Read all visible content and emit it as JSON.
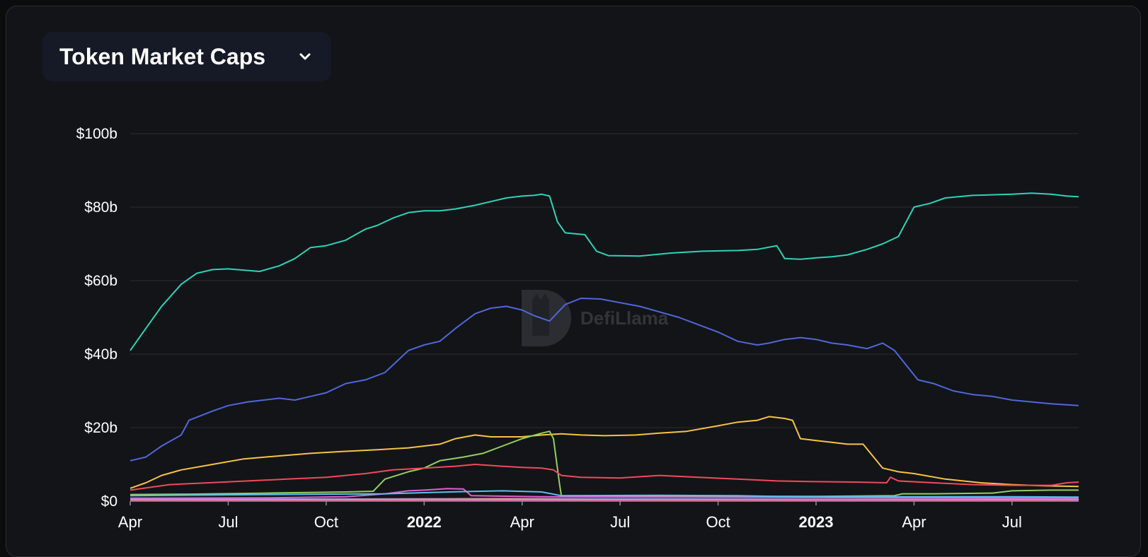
{
  "header": {
    "selector_label": "Token Market Caps"
  },
  "watermark": {
    "text": "DefiLlama"
  },
  "chart_data": {
    "type": "line",
    "title": "",
    "xlabel": "",
    "ylabel": "",
    "ylim": [
      0,
      100
    ],
    "y_unit": "b",
    "y_ticks": [
      0,
      20,
      40,
      60,
      80,
      100
    ],
    "y_tick_labels": [
      "$0",
      "$20b",
      "$40b",
      "$60b",
      "$80b",
      "$100b"
    ],
    "x_ticks": [
      {
        "x": 2021.25,
        "label": "Apr",
        "bold": false
      },
      {
        "x": 2021.5,
        "label": "Jul",
        "bold": false
      },
      {
        "x": 2021.75,
        "label": "Oct",
        "bold": false
      },
      {
        "x": 2022.0,
        "label": "2022",
        "bold": true
      },
      {
        "x": 2022.25,
        "label": "Apr",
        "bold": false
      },
      {
        "x": 2022.5,
        "label": "Jul",
        "bold": false
      },
      {
        "x": 2022.75,
        "label": "Oct",
        "bold": false
      },
      {
        "x": 2023.0,
        "label": "2023",
        "bold": true
      },
      {
        "x": 2023.25,
        "label": "Apr",
        "bold": false
      },
      {
        "x": 2023.5,
        "label": "Jul",
        "bold": false
      }
    ],
    "xlim": [
      2021.25,
      2023.67
    ],
    "grid": true,
    "legend": "none",
    "series": [
      {
        "color": "#2ed3b7",
        "points": [
          [
            2021.25,
            41
          ],
          [
            2021.29,
            47
          ],
          [
            2021.33,
            53
          ],
          [
            2021.38,
            59
          ],
          [
            2021.42,
            62
          ],
          [
            2021.46,
            63
          ],
          [
            2021.5,
            63.2
          ],
          [
            2021.58,
            62.5
          ],
          [
            2021.63,
            64
          ],
          [
            2021.67,
            66
          ],
          [
            2021.71,
            69
          ],
          [
            2021.75,
            69.5
          ],
          [
            2021.8,
            71
          ],
          [
            2021.85,
            74
          ],
          [
            2021.88,
            75
          ],
          [
            2021.92,
            77
          ],
          [
            2021.96,
            78.5
          ],
          [
            2022.0,
            79
          ],
          [
            2022.04,
            79
          ],
          [
            2022.08,
            79.5
          ],
          [
            2022.13,
            80.5
          ],
          [
            2022.17,
            81.5
          ],
          [
            2022.21,
            82.5
          ],
          [
            2022.25,
            83
          ],
          [
            2022.28,
            83.2
          ],
          [
            2022.3,
            83.5
          ],
          [
            2022.32,
            83
          ],
          [
            2022.34,
            76
          ],
          [
            2022.36,
            73
          ],
          [
            2022.41,
            72.5
          ],
          [
            2022.44,
            68
          ],
          [
            2022.47,
            66.8
          ],
          [
            2022.55,
            66.7
          ],
          [
            2022.63,
            67.5
          ],
          [
            2022.71,
            68
          ],
          [
            2022.8,
            68.2
          ],
          [
            2022.85,
            68.5
          ],
          [
            2022.9,
            69.5
          ],
          [
            2022.92,
            66
          ],
          [
            2022.96,
            65.8
          ],
          [
            2023.0,
            66.2
          ],
          [
            2023.04,
            66.5
          ],
          [
            2023.08,
            67
          ],
          [
            2023.13,
            68.5
          ],
          [
            2023.17,
            70
          ],
          [
            2023.21,
            72
          ],
          [
            2023.25,
            80
          ],
          [
            2023.29,
            81
          ],
          [
            2023.33,
            82.5
          ],
          [
            2023.4,
            83.2
          ],
          [
            2023.5,
            83.5
          ],
          [
            2023.55,
            83.8
          ],
          [
            2023.6,
            83.5
          ],
          [
            2023.64,
            83
          ],
          [
            2023.67,
            82.8
          ]
        ]
      },
      {
        "color": "#4f68d8",
        "points": [
          [
            2021.25,
            11
          ],
          [
            2021.29,
            12
          ],
          [
            2021.33,
            15
          ],
          [
            2021.38,
            18
          ],
          [
            2021.4,
            22
          ],
          [
            2021.46,
            24.5
          ],
          [
            2021.5,
            26
          ],
          [
            2021.55,
            27
          ],
          [
            2021.63,
            28
          ],
          [
            2021.67,
            27.5
          ],
          [
            2021.71,
            28.5
          ],
          [
            2021.75,
            29.5
          ],
          [
            2021.8,
            32
          ],
          [
            2021.85,
            33
          ],
          [
            2021.9,
            35
          ],
          [
            2021.96,
            41
          ],
          [
            2022.0,
            42.5
          ],
          [
            2022.04,
            43.5
          ],
          [
            2022.08,
            47
          ],
          [
            2022.13,
            51
          ],
          [
            2022.17,
            52.5
          ],
          [
            2022.21,
            53
          ],
          [
            2022.25,
            52
          ],
          [
            2022.28,
            50.5
          ],
          [
            2022.32,
            49
          ],
          [
            2022.36,
            53.5
          ],
          [
            2022.4,
            55.2
          ],
          [
            2022.45,
            55
          ],
          [
            2022.5,
            54
          ],
          [
            2022.55,
            53
          ],
          [
            2022.6,
            51.5
          ],
          [
            2022.65,
            50
          ],
          [
            2022.7,
            48
          ],
          [
            2022.75,
            46
          ],
          [
            2022.8,
            43.5
          ],
          [
            2022.85,
            42.5
          ],
          [
            2022.88,
            43
          ],
          [
            2022.92,
            44
          ],
          [
            2022.96,
            44.5
          ],
          [
            2023.0,
            44
          ],
          [
            2023.04,
            43
          ],
          [
            2023.08,
            42.5
          ],
          [
            2023.13,
            41.5
          ],
          [
            2023.17,
            43
          ],
          [
            2023.2,
            41
          ],
          [
            2023.23,
            37
          ],
          [
            2023.26,
            33
          ],
          [
            2023.3,
            32
          ],
          [
            2023.35,
            30
          ],
          [
            2023.4,
            29
          ],
          [
            2023.45,
            28.5
          ],
          [
            2023.5,
            27.5
          ],
          [
            2023.55,
            27
          ],
          [
            2023.6,
            26.5
          ],
          [
            2023.67,
            26
          ]
        ]
      },
      {
        "color": "#f6c344",
        "points": [
          [
            2021.25,
            3.5
          ],
          [
            2021.29,
            5
          ],
          [
            2021.33,
            7
          ],
          [
            2021.38,
            8.5
          ],
          [
            2021.46,
            10
          ],
          [
            2021.54,
            11.5
          ],
          [
            2021.63,
            12.3
          ],
          [
            2021.71,
            13
          ],
          [
            2021.79,
            13.5
          ],
          [
            2021.88,
            14
          ],
          [
            2021.96,
            14.5
          ],
          [
            2022.0,
            15
          ],
          [
            2022.04,
            15.5
          ],
          [
            2022.08,
            17
          ],
          [
            2022.13,
            18
          ],
          [
            2022.17,
            17.5
          ],
          [
            2022.25,
            17.5
          ],
          [
            2022.3,
            18
          ],
          [
            2022.35,
            18.3
          ],
          [
            2022.4,
            18
          ],
          [
            2022.46,
            17.8
          ],
          [
            2022.54,
            18
          ],
          [
            2022.6,
            18.5
          ],
          [
            2022.67,
            19
          ],
          [
            2022.75,
            20.5
          ],
          [
            2022.8,
            21.5
          ],
          [
            2022.85,
            22
          ],
          [
            2022.88,
            23
          ],
          [
            2022.92,
            22.5
          ],
          [
            2022.94,
            22
          ],
          [
            2022.96,
            17
          ],
          [
            2023.0,
            16.5
          ],
          [
            2023.04,
            16
          ],
          [
            2023.08,
            15.5
          ],
          [
            2023.12,
            15.5
          ],
          [
            2023.17,
            9
          ],
          [
            2023.21,
            8
          ],
          [
            2023.25,
            7.5
          ],
          [
            2023.33,
            6
          ],
          [
            2023.42,
            5
          ],
          [
            2023.5,
            4.5
          ],
          [
            2023.58,
            4.2
          ],
          [
            2023.67,
            4
          ]
        ]
      },
      {
        "color": "#90d060",
        "points": [
          [
            2021.25,
            1.8
          ],
          [
            2021.4,
            1.9
          ],
          [
            2021.6,
            2.2
          ],
          [
            2021.8,
            2.5
          ],
          [
            2021.87,
            2.7
          ],
          [
            2021.9,
            6
          ],
          [
            2021.96,
            8
          ],
          [
            2022.0,
            9
          ],
          [
            2022.04,
            11
          ],
          [
            2022.1,
            12
          ],
          [
            2022.15,
            13
          ],
          [
            2022.2,
            15
          ],
          [
            2022.25,
            17
          ],
          [
            2022.3,
            18.5
          ],
          [
            2022.32,
            19
          ],
          [
            2022.33,
            17
          ],
          [
            2022.345,
            5
          ],
          [
            2022.35,
            1.5
          ],
          [
            2022.5,
            1.4
          ],
          [
            2022.8,
            1.3
          ],
          [
            2023.0,
            1.3
          ],
          [
            2023.2,
            1.5
          ],
          [
            2023.22,
            2
          ],
          [
            2023.3,
            2
          ],
          [
            2023.45,
            2.2
          ],
          [
            2023.5,
            2.8
          ],
          [
            2023.6,
            3
          ],
          [
            2023.67,
            3
          ]
        ]
      },
      {
        "color": "#f04a5a",
        "points": [
          [
            2021.25,
            3
          ],
          [
            2021.35,
            4.5
          ],
          [
            2021.45,
            5
          ],
          [
            2021.55,
            5.5
          ],
          [
            2021.65,
            6
          ],
          [
            2021.75,
            6.5
          ],
          [
            2021.85,
            7.5
          ],
          [
            2021.92,
            8.5
          ],
          [
            2022.0,
            9
          ],
          [
            2022.08,
            9.5
          ],
          [
            2022.13,
            10
          ],
          [
            2022.2,
            9.5
          ],
          [
            2022.25,
            9.2
          ],
          [
            2022.3,
            9
          ],
          [
            2022.33,
            8.5
          ],
          [
            2022.35,
            7
          ],
          [
            2022.4,
            6.5
          ],
          [
            2022.5,
            6.3
          ],
          [
            2022.6,
            7
          ],
          [
            2022.7,
            6.5
          ],
          [
            2022.8,
            6
          ],
          [
            2022.9,
            5.5
          ],
          [
            2023.0,
            5.3
          ],
          [
            2023.1,
            5.2
          ],
          [
            2023.18,
            5
          ],
          [
            2023.19,
            6.5
          ],
          [
            2023.21,
            5.5
          ],
          [
            2023.3,
            5
          ],
          [
            2023.4,
            4.5
          ],
          [
            2023.5,
            4.3
          ],
          [
            2023.6,
            4.3
          ],
          [
            2023.64,
            5
          ],
          [
            2023.67,
            5.2
          ]
        ]
      },
      {
        "color": "#e25fd0",
        "points": [
          [
            2021.25,
            0.8
          ],
          [
            2021.6,
            0.9
          ],
          [
            2021.8,
            1.2
          ],
          [
            2021.9,
            2
          ],
          [
            2021.96,
            2.8
          ],
          [
            2022.0,
            3
          ],
          [
            2022.06,
            3.4
          ],
          [
            2022.1,
            3.3
          ],
          [
            2022.12,
            1.5
          ],
          [
            2022.3,
            1.2
          ],
          [
            2022.6,
            1.1
          ],
          [
            2022.9,
            1
          ],
          [
            2023.3,
            0.9
          ],
          [
            2023.67,
            0.8
          ]
        ]
      },
      {
        "color": "#5bc0eb",
        "points": [
          [
            2021.25,
            1.5
          ],
          [
            2021.6,
            1.8
          ],
          [
            2021.9,
            2
          ],
          [
            2022.0,
            2.3
          ],
          [
            2022.1,
            2.6
          ],
          [
            2022.2,
            2.8
          ],
          [
            2022.3,
            2.5
          ],
          [
            2022.35,
            1.5
          ],
          [
            2022.6,
            1.6
          ],
          [
            2022.8,
            1.5
          ],
          [
            2022.9,
            1.3
          ],
          [
            2023.2,
            1.2
          ],
          [
            2023.5,
            1.2
          ],
          [
            2023.67,
            1.1
          ]
        ]
      },
      {
        "color": "#9b8cf0",
        "points": [
          [
            2021.25,
            0.5
          ],
          [
            2021.8,
            0.6
          ],
          [
            2022.2,
            0.7
          ],
          [
            2022.6,
            0.6
          ],
          [
            2023.0,
            0.5
          ],
          [
            2023.67,
            0.5
          ]
        ]
      },
      {
        "color": "#ff9f43",
        "points": [
          [
            2021.25,
            0.3
          ],
          [
            2021.8,
            0.4
          ],
          [
            2022.2,
            0.5
          ],
          [
            2022.6,
            0.3
          ],
          [
            2023.0,
            0.3
          ],
          [
            2023.67,
            0.3
          ]
        ]
      },
      {
        "color": "#ff5fa2",
        "points": [
          [
            2021.25,
            0.15
          ],
          [
            2022.0,
            0.2
          ],
          [
            2023.0,
            0.2
          ],
          [
            2023.67,
            0.2
          ]
        ]
      }
    ]
  }
}
